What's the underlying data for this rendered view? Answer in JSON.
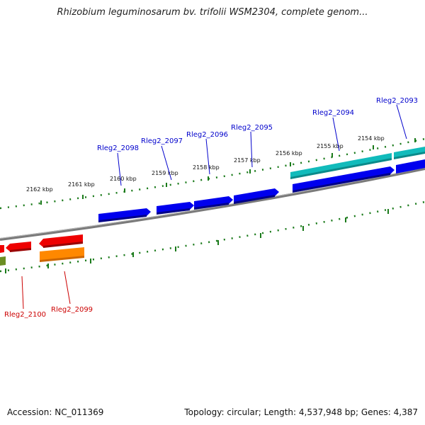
{
  "title": "Rhizobium leguminosarum bv. trifolii WSM2304, complete genom...",
  "footer": {
    "accession": "Accession: NC_011369",
    "summary": "Topology: circular; Length: 4,537,948 bp; Genes: 4,387"
  },
  "colors": {
    "backbone": "#777777",
    "ticks": "#1a7a1a",
    "forward_label": "#0000cc",
    "reverse_label": "#cc0000",
    "blue_gene": "#0000ee",
    "cyan_gene": "#11bbbb",
    "red_gene": "#ee0000",
    "orange_gene": "#ff8800",
    "olive_gene": "#6b8e23"
  },
  "ruler_labels": [
    "2162 kbp",
    "2161 kbp",
    "2160 kbp",
    "2159 kbp",
    "2158 kbp",
    "2157 kbp",
    "2156 kbp",
    "2155 kbp",
    "2154 kbp"
  ],
  "forward_genes": [
    {
      "name": "Rleg2_2098"
    },
    {
      "name": "Rleg2_2097"
    },
    {
      "name": "Rleg2_2096"
    },
    {
      "name": "Rleg2_2095"
    },
    {
      "name": "Rleg2_2094"
    },
    {
      "name": "Rleg2_2093"
    }
  ],
  "reverse_genes": [
    {
      "name": "Rleg2_2100"
    },
    {
      "name": "Rleg2_2099"
    }
  ]
}
